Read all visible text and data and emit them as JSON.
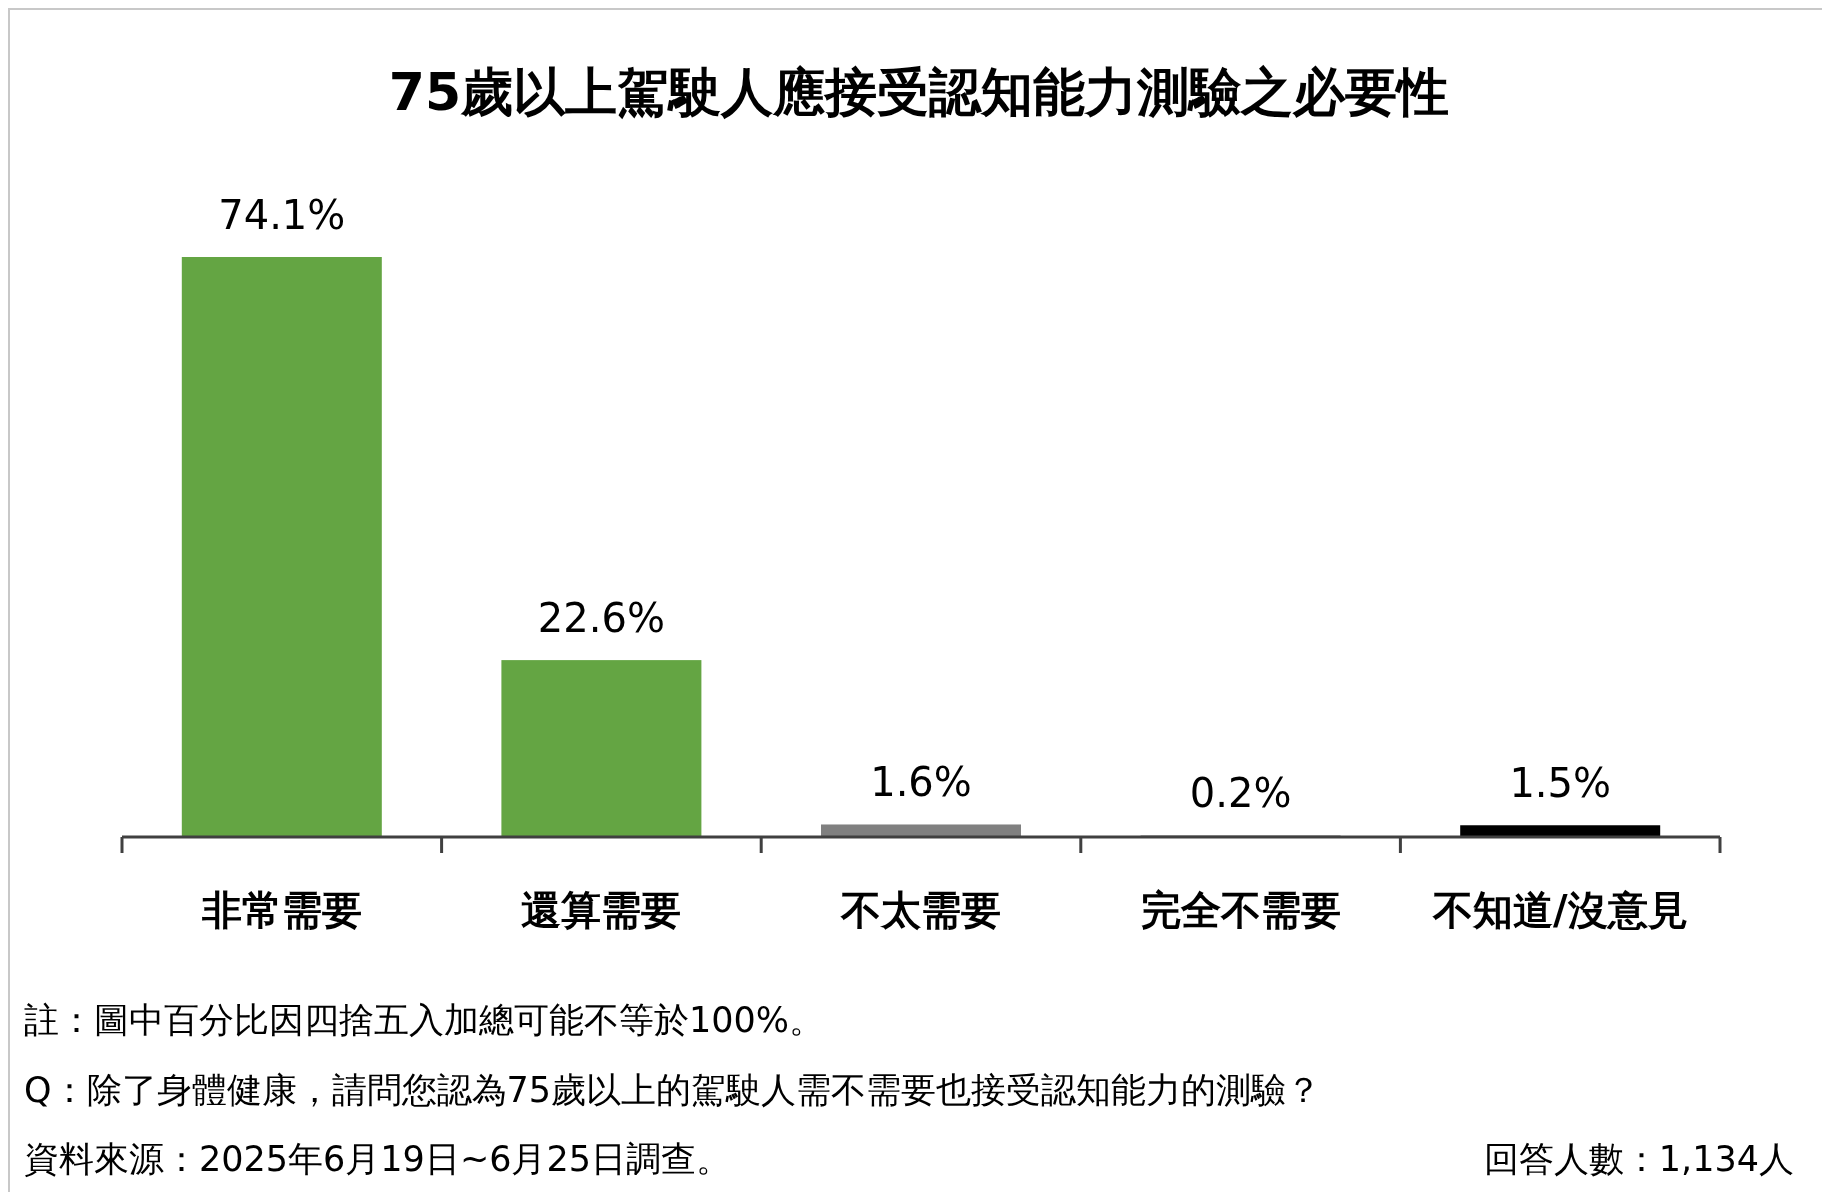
{
  "chart_data": {
    "type": "bar",
    "title": "75歲以上駕駛人應接受認知能力測驗之必要性",
    "categories": [
      "非常需要",
      "還算需要",
      "不太需要",
      "完全不需要",
      "不知道/沒意見"
    ],
    "values": [
      74.1,
      22.6,
      1.6,
      0.2,
      1.5
    ],
    "colors": [
      "#64a543",
      "#64a543",
      "#808080",
      "#808080",
      "#000000"
    ],
    "value_labels": [
      "74.1%",
      "22.6%",
      "1.6%",
      "0.2%",
      "1.5%"
    ],
    "annotations": [
      "註：圖中百分比因四捨五入加總可能不等於100%。",
      "Q：除了身體健康，請問您認為75歲以上的駕駛人需不需要也接受認知能力的測驗？",
      "資料來源：2025年6月19日~6月25日調查。",
      "回答人數：1,134人"
    ]
  }
}
